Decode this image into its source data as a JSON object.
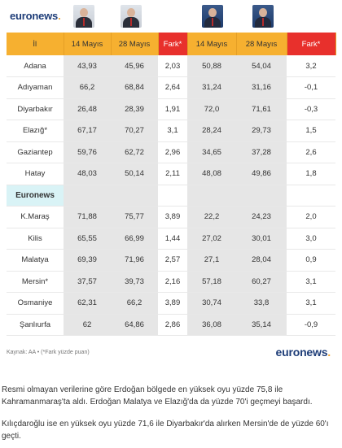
{
  "logo": {
    "text": "euronews",
    "dot": "."
  },
  "table": {
    "headers": [
      "İl",
      "14 Mayıs",
      "28 Mayıs",
      "Fark*",
      "14 Mayıs",
      "28 Mayıs",
      "Fark*"
    ],
    "rows": [
      [
        "Adana",
        "43,93",
        "45,96",
        "2,03",
        "50,88",
        "54,04",
        "3,2"
      ],
      [
        "Adıyaman",
        "66,2",
        "68,84",
        "2,64",
        "31,24",
        "31,16",
        "-0,1"
      ],
      [
        "Diyarbakır",
        "26,48",
        "28,39",
        "1,91",
        "72,0",
        "71,61",
        "-0,3"
      ],
      [
        "Elazığ*",
        "67,17",
        "70,27",
        "3,1",
        "28,24",
        "29,73",
        "1,5"
      ],
      [
        "Gaziantep",
        "59,76",
        "62,72",
        "2,96",
        "34,65",
        "37,28",
        "2,6"
      ],
      [
        "Hatay",
        "48,03",
        "50,14",
        "2,11",
        "48,08",
        "49,86",
        "1,8"
      ]
    ],
    "separator": "Euronews",
    "rows2": [
      [
        "K.Maraş",
        "71,88",
        "75,77",
        "3,89",
        "22,2",
        "24,23",
        "2,0"
      ],
      [
        "Kilis",
        "65,55",
        "66,99",
        "1,44",
        "27,02",
        "30,01",
        "3,0"
      ],
      [
        "Malatya",
        "69,39",
        "71,96",
        "2,57",
        "27,1",
        "28,04",
        "0,9"
      ],
      [
        "Mersin*",
        "37,57",
        "39,73",
        "2,16",
        "57,18",
        "60,27",
        "3,1"
      ],
      [
        "Osmaniye",
        "62,31",
        "66,2",
        "3,89",
        "30,74",
        "33,8",
        "3,1"
      ],
      [
        "Şanlıurfa",
        "62",
        "64,86",
        "2,86",
        "36,08",
        "35,14",
        "-0,9"
      ]
    ]
  },
  "source": "Kaynak: AA • (*Fark yüzde puan)",
  "paragraphs": [
    "Resmi olmayan verilerine göre Erdoğan bölgede en yüksek oyu yüzde 75,8 ile Kahramanmaraş'ta aldı. Erdoğan Malatya ve Elazığ'da da yüzde 70'i geçmeyi başardı.",
    "Kılıçdaroğlu ise en yüksek oyu yüzde 71,6 ile Diyarbakır'da alırken Mersin'de de yüzde 60'ı geçti."
  ],
  "colors": {
    "header": "#f6b030",
    "fark": "#e8302c",
    "gray": "#e6e6e6",
    "brand": "#1e3d78",
    "separator": "#d9f3f6"
  },
  "icons": [
    "erdogan-photo",
    "erdogan-photo",
    "kilicdaroglu-photo",
    "kilicdaroglu-photo"
  ]
}
